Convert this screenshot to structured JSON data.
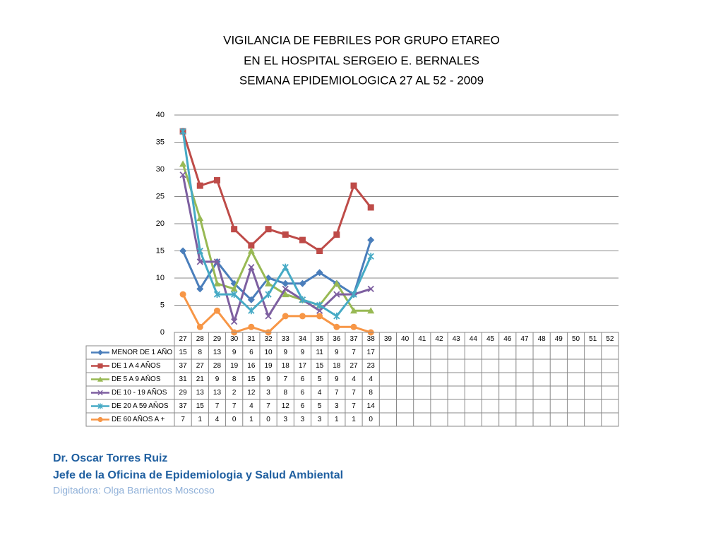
{
  "chart_data": {
    "type": "line",
    "title": [
      "VIGILANCIA DE FEBRILES  POR GRUPO ETAREO",
      "EN EL HOSPITAL SERGEIO E. BERNALES",
      "SEMANA EPIDEMIOLOGICA 27 AL 52 - 2009"
    ],
    "categories": [
      "27",
      "28",
      "29",
      "30",
      "31",
      "32",
      "33",
      "34",
      "35",
      "36",
      "37",
      "38",
      "39",
      "40",
      "41",
      "42",
      "43",
      "44",
      "45",
      "46",
      "47",
      "48",
      "49",
      "50",
      "51",
      "52"
    ],
    "ylim": [
      0,
      40
    ],
    "yticks": [
      0,
      5,
      10,
      15,
      20,
      25,
      30,
      35,
      40
    ],
    "grid": true,
    "data_table": true,
    "series": [
      {
        "name": "MENOR DE 1 AÑO",
        "color": "#4a7ebb",
        "marker": "diamond",
        "values": [
          15,
          8,
          13,
          9,
          6,
          10,
          9,
          9,
          11,
          9,
          7,
          17,
          null,
          null,
          null,
          null,
          null,
          null,
          null,
          null,
          null,
          null,
          null,
          null,
          null,
          null
        ]
      },
      {
        "name": "DE 1 A 4 AÑOS",
        "color": "#be4b48",
        "marker": "square",
        "values": [
          37,
          27,
          28,
          19,
          16,
          19,
          18,
          17,
          15,
          18,
          27,
          23,
          null,
          null,
          null,
          null,
          null,
          null,
          null,
          null,
          null,
          null,
          null,
          null,
          null,
          null
        ]
      },
      {
        "name": "DE 5 A 9 AÑOS",
        "color": "#98b954",
        "marker": "triangle",
        "values": [
          31,
          21,
          9,
          8,
          15,
          9,
          7,
          6,
          5,
          9,
          4,
          4,
          null,
          null,
          null,
          null,
          null,
          null,
          null,
          null,
          null,
          null,
          null,
          null,
          null,
          null
        ]
      },
      {
        "name": "DE 10 - 19 AÑOS",
        "color": "#7d5fa0",
        "marker": "x",
        "values": [
          29,
          13,
          13,
          2,
          12,
          3,
          8,
          6,
          4,
          7,
          7,
          8,
          null,
          null,
          null,
          null,
          null,
          null,
          null,
          null,
          null,
          null,
          null,
          null,
          null,
          null
        ]
      },
      {
        "name": "DE 20 A 59 AÑOS",
        "color": "#46aac5",
        "marker": "star",
        "values": [
          37,
          15,
          7,
          7,
          4,
          7,
          12,
          6,
          5,
          3,
          7,
          14,
          null,
          null,
          null,
          null,
          null,
          null,
          null,
          null,
          null,
          null,
          null,
          null,
          null,
          null
        ]
      },
      {
        "name": "DE 60 AÑOS A +",
        "color": "#f79646",
        "marker": "circle",
        "values": [
          7,
          1,
          4,
          0,
          1,
          0,
          3,
          3,
          3,
          1,
          1,
          0,
          null,
          null,
          null,
          null,
          null,
          null,
          null,
          null,
          null,
          null,
          null,
          null,
          null,
          null
        ]
      }
    ]
  },
  "footer": {
    "author": "Dr.  Oscar  Torres Ruiz",
    "role": "Jefe de la Oficina de Epidemiologia y  Salud Ambiental",
    "typist": "Digitadora: Olga Barrientos Moscoso"
  }
}
